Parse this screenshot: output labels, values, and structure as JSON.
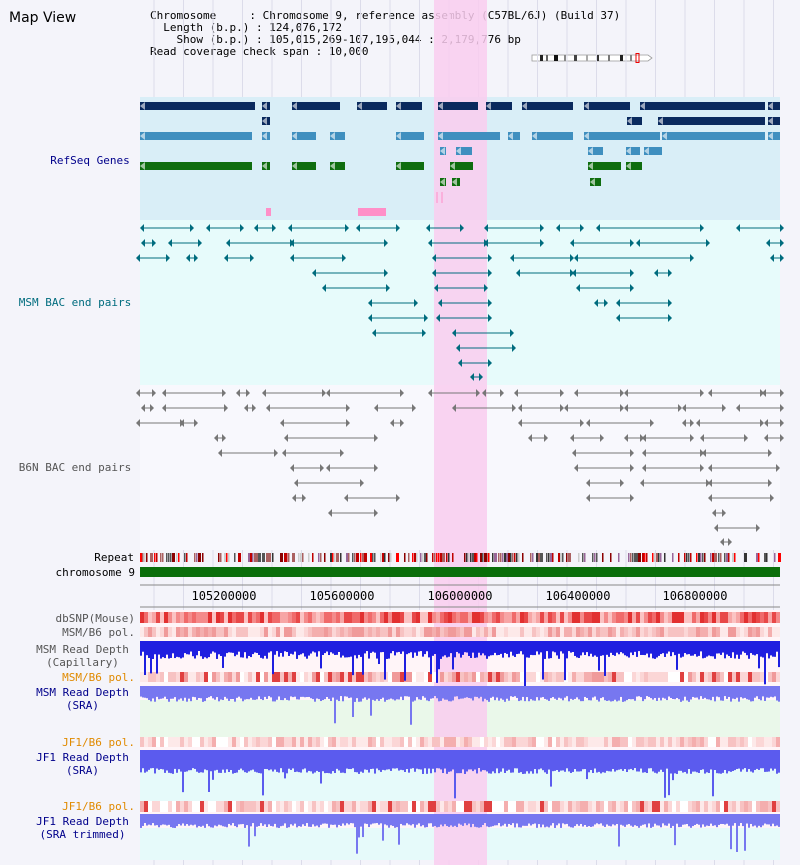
{
  "app": {
    "title": "Map View"
  },
  "info": {
    "lines": [
      "Chromosome     : Chromosome 9, reference assembly (C57BL/6J) (Build 37)",
      "  Length (b.p.) : 124,076,172",
      "    Show (b.p.) : 105,015,269-107,195,044 : 2,179,776 bp",
      "Read coverage check span : 10,000"
    ]
  },
  "axis": {
    "ticks": [
      "105200000",
      "105600000",
      "106000000",
      "106400000",
      "106800000"
    ]
  },
  "tracks": {
    "refseq": "RefSeq Genes",
    "msm_bac": "MSM BAC end pairs",
    "b6n_bac": "B6N BAC end pairs",
    "repeat": "Repeat",
    "chromosome": "chromosome 9",
    "dbsnp": "dbSNP(Mouse)",
    "msm_b6_pol_1": "MSM/B6 pol.",
    "msm_depth_cap_1": "MSM Read Depth",
    "msm_depth_cap_2": "(Capillary)",
    "msm_b6_pol_2": "MSM/B6 pol.",
    "msm_depth_sra_1": "MSM Read Depth",
    "msm_depth_sra_2": "(SRA)",
    "jf1_b6_pol_1": "JF1/B6 pol.",
    "jf1_depth_sra_1": "JF1 Read Depth",
    "jf1_depth_sra_2": "(SRA)",
    "jf1_b6_pol_2": "JF1/B6 pol.",
    "jf1_depth_trim_1": "JF1 Read Depth",
    "jf1_depth_trim_2": "(SRA trimmed)"
  },
  "colors": {
    "navy": "#00008b",
    "teal": "#006c7e",
    "orange": "#e08a00",
    "refseq_bg": "#d9eef7",
    "bac_bg": "#e7fbfb",
    "highlight": "#f9cdee",
    "gene_dark": "#0a2a5e",
    "gene_mid": "#3f8fbf",
    "gene_green": "#0f6d0f",
    "chromosome_bar": "#0a6e0a",
    "depth_cap": "#1f1fe0",
    "depth_sra": "#7777f0"
  }
}
